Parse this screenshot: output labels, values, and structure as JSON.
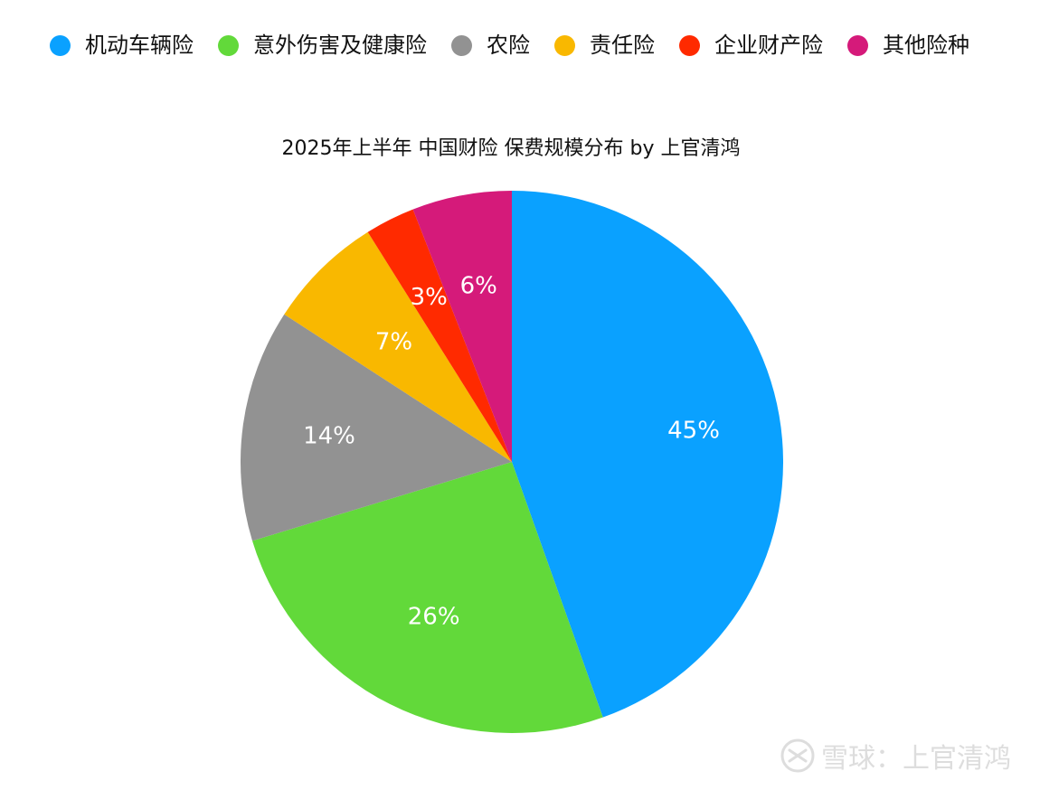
{
  "chart_data": {
    "type": "pie",
    "title": "2025年上半年 中国财险 保费规模分布 by 上官清鸿",
    "legend_position": "top",
    "slices": [
      {
        "name": "机动车辆险",
        "value": 45,
        "label": "45%",
        "color": "#0AA1FF"
      },
      {
        "name": "意外伤害及健康险",
        "value": 26,
        "label": "26%",
        "color": "#62D93A"
      },
      {
        "name": "农险",
        "value": 14,
        "label": "14%",
        "color": "#929292"
      },
      {
        "name": "责任险",
        "value": 7,
        "label": "7%",
        "color": "#F9B800"
      },
      {
        "name": "企业财产险",
        "value": 3,
        "label": "3%",
        "color": "#FF2A00"
      },
      {
        "name": "其他险种",
        "value": 6,
        "label": "6%",
        "color": "#D51A7A"
      }
    ]
  },
  "watermark": {
    "text": "雪球：上官清鸿",
    "icon": "xueqiu-logo-icon"
  }
}
